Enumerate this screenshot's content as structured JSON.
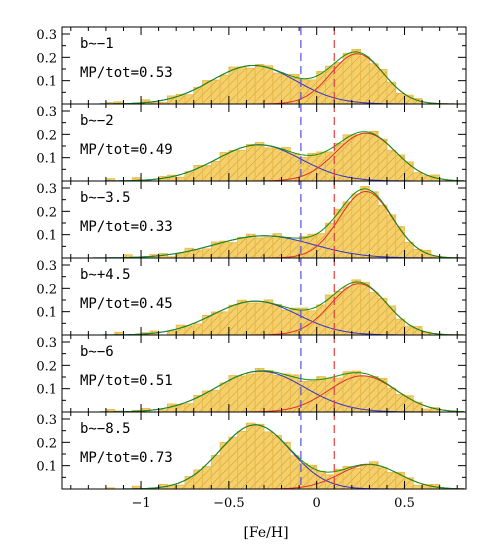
{
  "chart_data": {
    "type": "histogram-with-gaussian-fits",
    "xlabel": "[Fe/H]",
    "xlim": [
      -1.45,
      0.85
    ],
    "ylim": [
      0,
      0.33
    ],
    "x_ticks": [
      "−1",
      "−0.5",
      "0",
      "0.5"
    ],
    "x_tick_values": [
      -1,
      -0.5,
      0,
      0.5
    ],
    "y_ticks": [
      "0.1",
      "0.2",
      "0.3"
    ],
    "y_tick_values": [
      0.1,
      0.2,
      0.3
    ],
    "bin_width": 0.05,
    "vlines": [
      {
        "x": -0.09,
        "color": "#5050e0",
        "style": "dashed"
      },
      {
        "x": 0.1,
        "color": "#e04040",
        "style": "dashed"
      }
    ],
    "colors": {
      "hist_fill": "#f5cf6a",
      "hist_hatch": "#c89a30",
      "metal_poor": "#3333cc",
      "metal_rich": "#e03030",
      "total": "#109010"
    },
    "panels": [
      {
        "label": "b∼−1",
        "ratio": "MP/tot=0.53",
        "mp": {
          "amp": 0.165,
          "mu": -0.36,
          "sigma": 0.24
        },
        "mr": {
          "amp": 0.215,
          "mu": 0.23,
          "sigma": 0.15
        }
      },
      {
        "label": "b∼−2",
        "ratio": "MP/tot=0.49",
        "mp": {
          "amp": 0.155,
          "mu": -0.33,
          "sigma": 0.24
        },
        "mr": {
          "amp": 0.205,
          "mu": 0.28,
          "sigma": 0.17
        }
      },
      {
        "label": "b∼−3.5",
        "ratio": "MP/tot=0.33",
        "mp": {
          "amp": 0.095,
          "mu": -0.3,
          "sigma": 0.28
        },
        "mr": {
          "amp": 0.285,
          "mu": 0.28,
          "sigma": 0.15
        }
      },
      {
        "label": "b∼+4.5",
        "ratio": "MP/tot=0.45",
        "mp": {
          "amp": 0.145,
          "mu": -0.35,
          "sigma": 0.24
        },
        "mr": {
          "amp": 0.22,
          "mu": 0.24,
          "sigma": 0.16
        }
      },
      {
        "label": "b∼−6",
        "ratio": "MP/tot=0.51",
        "mp": {
          "amp": 0.175,
          "mu": -0.32,
          "sigma": 0.25
        },
        "mr": {
          "amp": 0.155,
          "mu": 0.26,
          "sigma": 0.19
        }
      },
      {
        "label": "b∼−8.5",
        "ratio": "MP/tot=0.73",
        "mp": {
          "amp": 0.275,
          "mu": -0.35,
          "sigma": 0.2
        },
        "mr": {
          "amp": 0.105,
          "mu": 0.3,
          "sigma": 0.17
        }
      }
    ]
  }
}
